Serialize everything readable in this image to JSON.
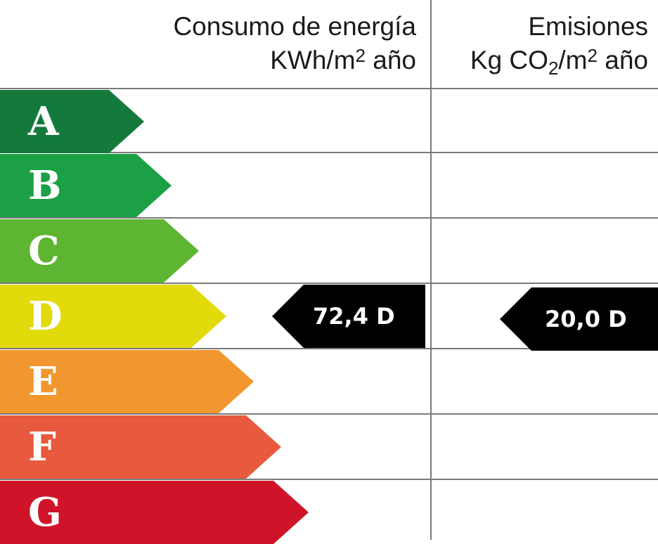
{
  "header": {
    "energy_title": "Consumo de energía",
    "energy_unit_a": "KWh/m",
    "energy_unit_sup": "2",
    "energy_unit_b": " año",
    "emissions_title": "Emisiones",
    "emissions_unit_a": "Kg CO",
    "emissions_unit_sub": "2",
    "emissions_unit_b": "/m",
    "emissions_unit_sup": "2",
    "emissions_unit_c": " año"
  },
  "bands": [
    {
      "letter": "A",
      "color": "#137a3c"
    },
    {
      "letter": "B",
      "color": "#1ca046"
    },
    {
      "letter": "C",
      "color": "#5db532"
    },
    {
      "letter": "D",
      "color": "#e2da0b"
    },
    {
      "letter": "E",
      "color": "#f2972f"
    },
    {
      "letter": "F",
      "color": "#e85a3e"
    },
    {
      "letter": "G",
      "color": "#cf1429"
    }
  ],
  "rating": {
    "energy_value": "72,4 D",
    "emissions_value": "20,0 D",
    "band": "D",
    "color": "#000000"
  }
}
